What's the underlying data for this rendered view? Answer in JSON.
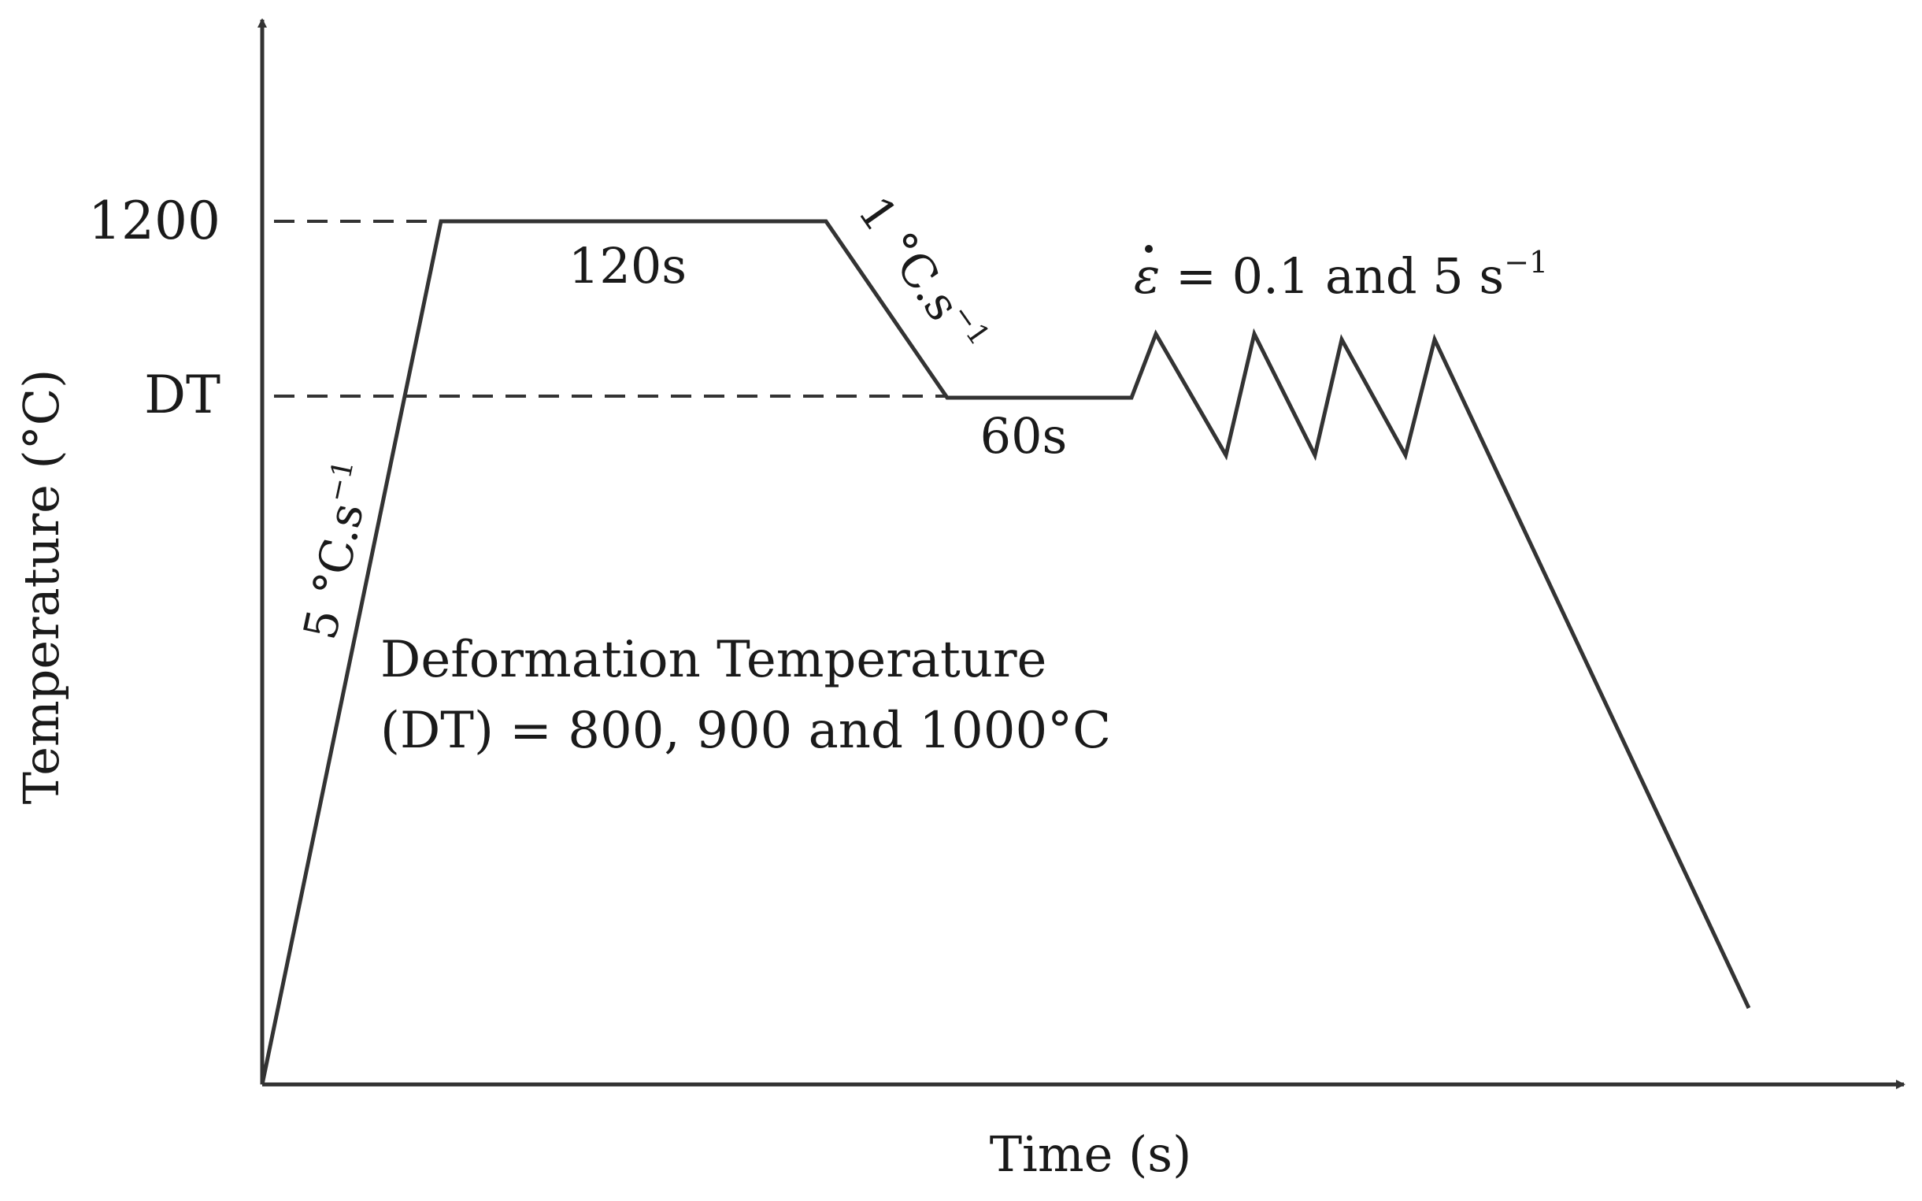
{
  "diagram": {
    "axis_x_label": "Time (s)",
    "axis_y_label": "Temperature (°C)",
    "tick_1200": "1200",
    "tick_dt": "DT",
    "heating_rate": "5 °C.s",
    "heating_rate_exp": "−1",
    "hold_high": "120s",
    "cooling_rate": "1 °C.s",
    "cooling_rate_exp": "−1",
    "hold_dt": "60s",
    "strain_rate_symbol": "ε",
    "strain_rate_text": " = 0.1 and 5 s",
    "strain_rate_exp": "−1",
    "note_line1": "Deformation Temperature",
    "note_line2": "(DT) = 800, 900 and 1000°C"
  },
  "colors": {
    "line": "#333333",
    "text": "#1a1a1a"
  }
}
